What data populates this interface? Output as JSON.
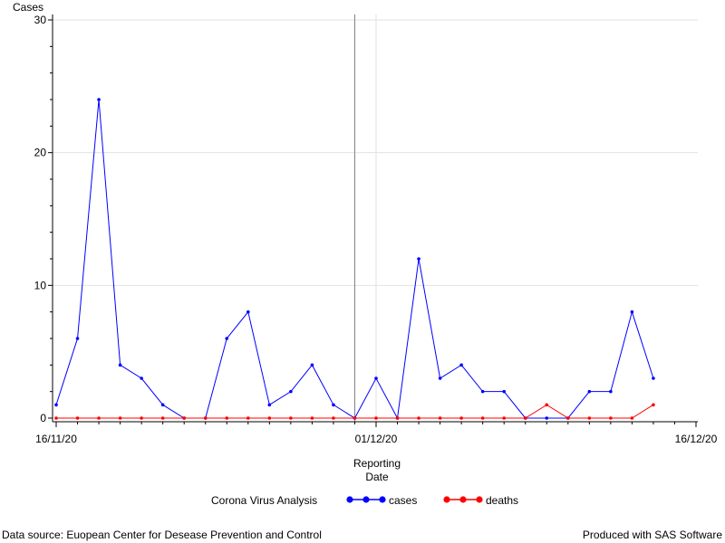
{
  "chart_data": {
    "type": "line",
    "ylabel": "Cases",
    "xlabel_lines": [
      "Reporting",
      "Date"
    ],
    "x_ticks": [
      "16/11/20",
      "01/12/20",
      "16/12/20"
    ],
    "y_ticks": [
      0,
      10,
      20,
      30
    ],
    "ylim": [
      0,
      30
    ],
    "xlim": [
      "2020-11-16",
      "2020-12-16"
    ],
    "reference_line_date": "2020-11-30",
    "grid": true,
    "legend": {
      "title": "Corona Virus Analysis",
      "placement": "bottom"
    },
    "x": [
      "2020-11-16",
      "2020-11-17",
      "2020-11-18",
      "2020-11-19",
      "2020-11-20",
      "2020-11-21",
      "2020-11-22",
      "2020-11-23",
      "2020-11-24",
      "2020-11-25",
      "2020-11-26",
      "2020-11-27",
      "2020-11-28",
      "2020-11-29",
      "2020-11-30",
      "2020-12-01",
      "2020-12-02",
      "2020-12-03",
      "2020-12-04",
      "2020-12-05",
      "2020-12-06",
      "2020-12-07",
      "2020-12-08",
      "2020-12-09",
      "2020-12-10",
      "2020-12-11",
      "2020-12-12",
      "2020-12-13",
      "2020-12-14"
    ],
    "series": [
      {
        "name": "cases",
        "color": "#0000ff",
        "values": [
          1,
          6,
          24,
          4,
          3,
          1,
          0,
          0,
          6,
          8,
          1,
          2,
          4,
          1,
          0,
          3,
          0,
          12,
          3,
          4,
          2,
          2,
          0,
          0,
          0,
          2,
          2,
          8,
          3
        ]
      },
      {
        "name": "deaths",
        "color": "#ff0000",
        "values": [
          0,
          0,
          0,
          0,
          0,
          0,
          0,
          0,
          0,
          0,
          0,
          0,
          0,
          0,
          0,
          0,
          0,
          0,
          0,
          0,
          0,
          0,
          0,
          1,
          0,
          0,
          0,
          0,
          1
        ]
      }
    ]
  },
  "footer": {
    "left": "Data source: Euopean Center for Desease Prevention and Control",
    "right": "Produced with SAS Software"
  }
}
